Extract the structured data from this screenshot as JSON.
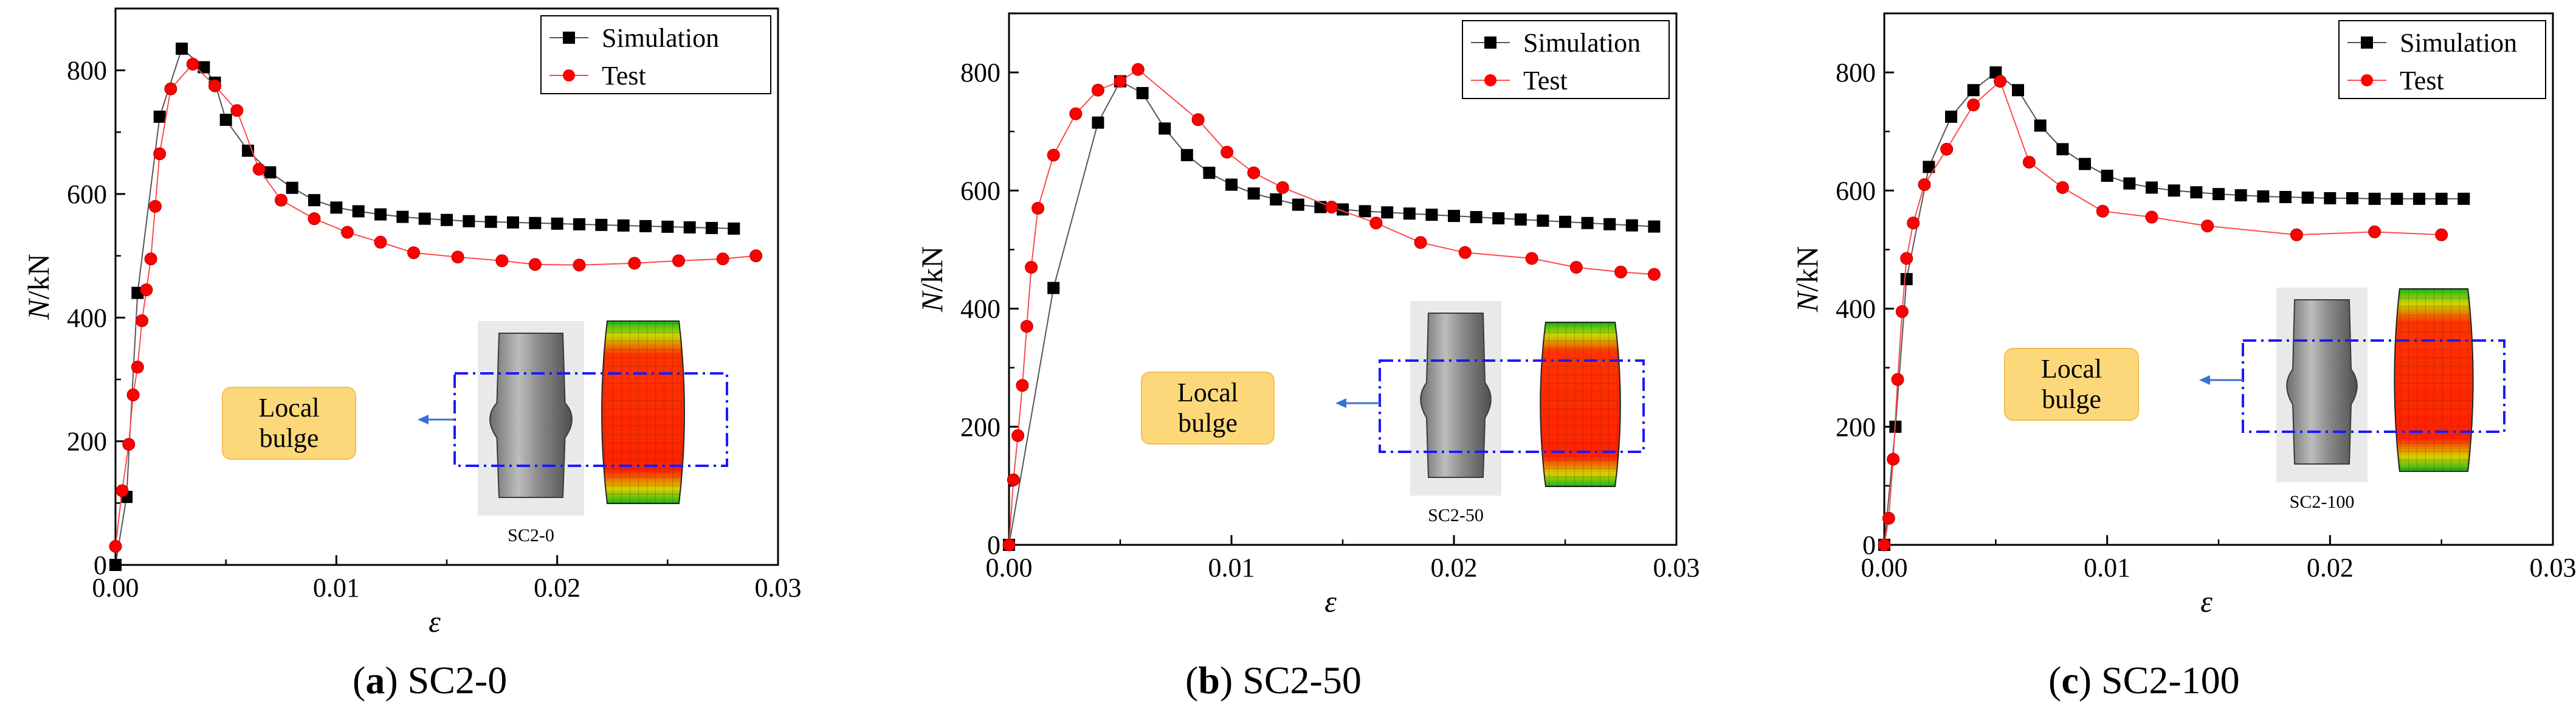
{
  "figure": {
    "panels_count": 3
  },
  "chart_data": [
    {
      "type": "scatter",
      "panel_id": "a",
      "caption_label": "a",
      "caption_text": "SC2-0",
      "xlabel": "ε",
      "ylabel": "N/kN",
      "xlim": [
        0,
        0.03
      ],
      "ylim": [
        0,
        900
      ],
      "xticks": [
        0,
        0.01,
        0.02,
        0.03
      ],
      "xtick_labels": [
        "0.00",
        "0.01",
        "0.02",
        "0.03"
      ],
      "yticks": [
        0,
        200,
        400,
        600,
        800
      ],
      "ytick_labels": [
        "0",
        "200",
        "400",
        "600",
        "800"
      ],
      "legend_position": "top-right",
      "series": [
        {
          "name": "Simulation",
          "color": "#000000",
          "marker": "square",
          "points": [
            [
              0,
              0
            ],
            [
              0.0005,
              110
            ],
            [
              0.001,
              440
            ],
            [
              0.002,
              725
            ],
            [
              0.003,
              835
            ],
            [
              0.004,
              805
            ],
            [
              0.0045,
              780
            ],
            [
              0.005,
              720
            ],
            [
              0.006,
              670
            ],
            [
              0.007,
              635
            ],
            [
              0.008,
              610
            ],
            [
              0.009,
              590
            ],
            [
              0.01,
              578
            ],
            [
              0.011,
              572
            ],
            [
              0.012,
              567
            ],
            [
              0.013,
              563
            ],
            [
              0.014,
              560
            ],
            [
              0.015,
              558
            ],
            [
              0.016,
              556
            ],
            [
              0.017,
              555
            ],
            [
              0.018,
              554
            ],
            [
              0.019,
              553
            ],
            [
              0.02,
              552
            ],
            [
              0.021,
              551
            ],
            [
              0.022,
              550
            ],
            [
              0.023,
              549
            ],
            [
              0.024,
              548
            ],
            [
              0.025,
              547
            ],
            [
              0.026,
              546
            ],
            [
              0.027,
              545
            ],
            [
              0.028,
              544
            ]
          ]
        },
        {
          "name": "Test",
          "color": "#ff0000",
          "marker": "circle",
          "points": [
            [
              0,
              30
            ],
            [
              0.0003,
              120
            ],
            [
              0.0006,
              195
            ],
            [
              0.0008,
              275
            ],
            [
              0.001,
              320
            ],
            [
              0.0012,
              395
            ],
            [
              0.0014,
              445
            ],
            [
              0.0016,
              495
            ],
            [
              0.0018,
              580
            ],
            [
              0.002,
              665
            ],
            [
              0.0025,
              770
            ],
            [
              0.0035,
              810
            ],
            [
              0.0045,
              775
            ],
            [
              0.0055,
              735
            ],
            [
              0.0065,
              640
            ],
            [
              0.0075,
              590
            ],
            [
              0.009,
              560
            ],
            [
              0.0105,
              538
            ],
            [
              0.012,
              522
            ],
            [
              0.0135,
              505
            ],
            [
              0.0155,
              498
            ],
            [
              0.0175,
              492
            ],
            [
              0.019,
              486
            ],
            [
              0.021,
              485
            ],
            [
              0.0235,
              488
            ],
            [
              0.0255,
              492
            ],
            [
              0.0275,
              495
            ],
            [
              0.029,
              500
            ]
          ]
        }
      ],
      "annotation": {
        "callout_text": [
          "Local",
          "bulge"
        ],
        "specimen_label": "SC2-0"
      }
    },
    {
      "type": "scatter",
      "panel_id": "b",
      "caption_label": "b",
      "caption_text": "SC2-50",
      "xlabel": "ε",
      "ylabel": "N/kN",
      "xlim": [
        0,
        0.03
      ],
      "ylim": [
        0,
        900
      ],
      "xticks": [
        0,
        0.01,
        0.02,
        0.03
      ],
      "xtick_labels": [
        "0.00",
        "0.01",
        "0.02",
        "0.03"
      ],
      "yticks": [
        0,
        200,
        400,
        600,
        800
      ],
      "ytick_labels": [
        "0",
        "200",
        "400",
        "600",
        "800"
      ],
      "legend_position": "top-right",
      "series": [
        {
          "name": "Simulation",
          "color": "#000000",
          "marker": "square",
          "points": [
            [
              0,
              0
            ],
            [
              0.002,
              435
            ],
            [
              0.004,
              715
            ],
            [
              0.005,
              785
            ],
            [
              0.006,
              765
            ],
            [
              0.007,
              705
            ],
            [
              0.008,
              660
            ],
            [
              0.009,
              630
            ],
            [
              0.01,
              610
            ],
            [
              0.011,
              595
            ],
            [
              0.012,
              585
            ],
            [
              0.013,
              576
            ],
            [
              0.014,
              572
            ],
            [
              0.015,
              568
            ],
            [
              0.016,
              565
            ],
            [
              0.017,
              563
            ],
            [
              0.018,
              561
            ],
            [
              0.019,
              559
            ],
            [
              0.02,
              557
            ],
            [
              0.021,
              555
            ],
            [
              0.022,
              553
            ],
            [
              0.023,
              551
            ],
            [
              0.024,
              549
            ],
            [
              0.025,
              547
            ],
            [
              0.026,
              545
            ],
            [
              0.027,
              543
            ],
            [
              0.028,
              541
            ],
            [
              0.029,
              539
            ]
          ]
        },
        {
          "name": "Test",
          "color": "#ff0000",
          "marker": "circle",
          "points": [
            [
              0,
              0
            ],
            [
              0.0002,
              110
            ],
            [
              0.0004,
              185
            ],
            [
              0.0006,
              270
            ],
            [
              0.0008,
              370
            ],
            [
              0.001,
              470
            ],
            [
              0.0013,
              570
            ],
            [
              0.002,
              660
            ],
            [
              0.003,
              730
            ],
            [
              0.004,
              770
            ],
            [
              0.005,
              785
            ],
            [
              0.0058,
              805
            ],
            [
              0.0085,
              720
            ],
            [
              0.0098,
              665
            ],
            [
              0.011,
              630
            ],
            [
              0.0123,
              605
            ],
            [
              0.0145,
              572
            ],
            [
              0.0165,
              545
            ],
            [
              0.0185,
              512
            ],
            [
              0.0205,
              495
            ],
            [
              0.0235,
              485
            ],
            [
              0.0255,
              470
            ],
            [
              0.0275,
              462
            ],
            [
              0.029,
              458
            ]
          ]
        }
      ],
      "annotation": {
        "callout_text": [
          "Local",
          "bulge"
        ],
        "specimen_label": "SC2-50"
      }
    },
    {
      "type": "scatter",
      "panel_id": "c",
      "caption_label": "c",
      "caption_text": "SC2-100",
      "xlabel": "ε",
      "ylabel": "N/kN",
      "xlim": [
        0,
        0.03
      ],
      "ylim": [
        0,
        900
      ],
      "xticks": [
        0,
        0.01,
        0.02,
        0.03
      ],
      "xtick_labels": [
        "0.00",
        "0.01",
        "0.02",
        "0.03"
      ],
      "yticks": [
        0,
        200,
        400,
        600,
        800
      ],
      "ytick_labels": [
        "0",
        "200",
        "400",
        "600",
        "800"
      ],
      "legend_position": "top-right",
      "series": [
        {
          "name": "Simulation",
          "color": "#000000",
          "marker": "square",
          "points": [
            [
              0,
              0
            ],
            [
              0.0005,
              200
            ],
            [
              0.001,
              450
            ],
            [
              0.002,
              640
            ],
            [
              0.003,
              725
            ],
            [
              0.004,
              770
            ],
            [
              0.005,
              800
            ],
            [
              0.006,
              770
            ],
            [
              0.007,
              710
            ],
            [
              0.008,
              670
            ],
            [
              0.009,
              645
            ],
            [
              0.01,
              625
            ],
            [
              0.011,
              612
            ],
            [
              0.012,
              605
            ],
            [
              0.013,
              600
            ],
            [
              0.014,
              597
            ],
            [
              0.015,
              594
            ],
            [
              0.016,
              592
            ],
            [
              0.017,
              590
            ],
            [
              0.018,
              589
            ],
            [
              0.019,
              588
            ],
            [
              0.02,
              587
            ],
            [
              0.021,
              587
            ],
            [
              0.022,
              586
            ],
            [
              0.023,
              586
            ],
            [
              0.024,
              586
            ],
            [
              0.025,
              586
            ],
            [
              0.026,
              586
            ]
          ]
        },
        {
          "name": "Test",
          "color": "#ff0000",
          "marker": "circle",
          "points": [
            [
              0,
              0
            ],
            [
              0.0002,
              45
            ],
            [
              0.0004,
              145
            ],
            [
              0.0006,
              280
            ],
            [
              0.0008,
              395
            ],
            [
              0.001,
              485
            ],
            [
              0.0013,
              545
            ],
            [
              0.0018,
              610
            ],
            [
              0.0028,
              670
            ],
            [
              0.004,
              745
            ],
            [
              0.0052,
              785
            ],
            [
              0.0065,
              648
            ],
            [
              0.008,
              605
            ],
            [
              0.0098,
              565
            ],
            [
              0.012,
              555
            ],
            [
              0.0145,
              540
            ],
            [
              0.0185,
              525
            ],
            [
              0.022,
              530
            ],
            [
              0.025,
              525
            ]
          ]
        }
      ],
      "annotation": {
        "callout_text": [
          "Local",
          "bulge"
        ],
        "specimen_label": "SC2-100"
      }
    }
  ]
}
